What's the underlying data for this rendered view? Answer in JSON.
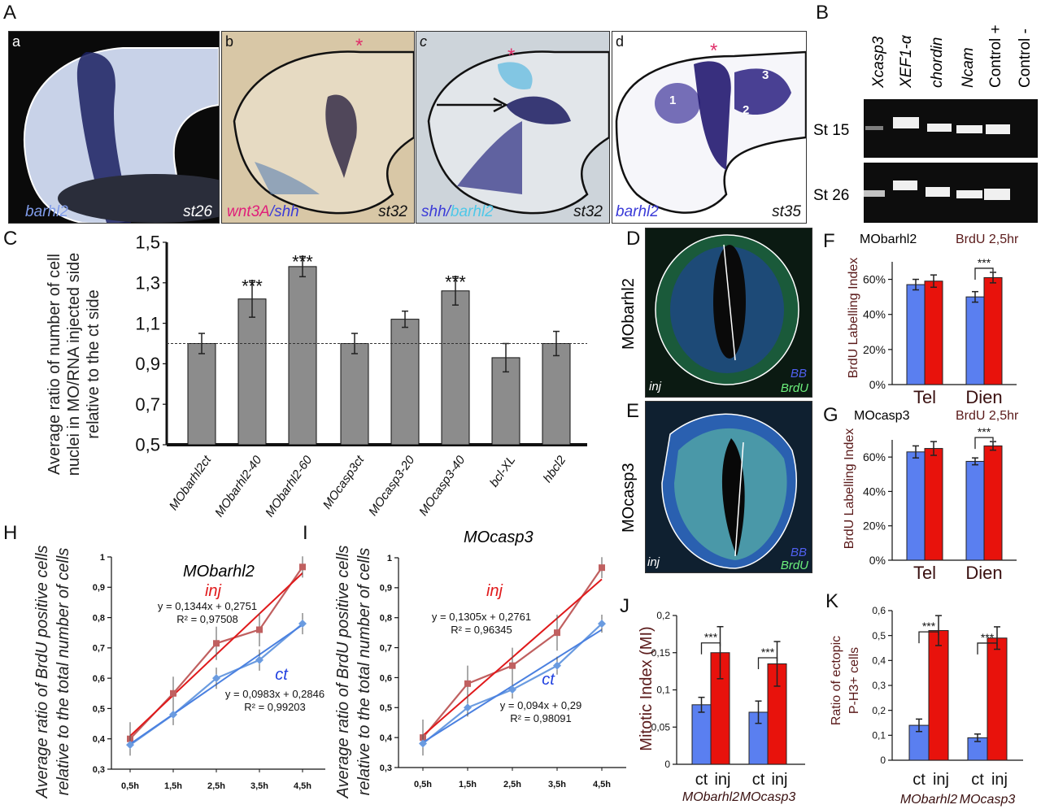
{
  "panel_letters": {
    "A": "A",
    "B": "B",
    "C": "C",
    "D": "D",
    "E": "E",
    "F": "F",
    "G": "G",
    "H": "H",
    "I": "I",
    "J": "J",
    "K": "K"
  },
  "panel_a": {
    "sub_letters": [
      "a",
      "b",
      "c",
      "d"
    ],
    "a": {
      "gene": "barhl2",
      "stage": "st26"
    },
    "b": {
      "gene1": "wnt3A",
      "sep": "/",
      "gene2": "shh",
      "stage": "st32",
      "marker": "*"
    },
    "c": {
      "gene1": "shh",
      "sep": "/",
      "gene2": "barhl2",
      "stage": "st32",
      "marker": "*",
      "arrow": "arrow-icon"
    },
    "d": {
      "gene": "barhl2",
      "stage": "st35",
      "marker": "*",
      "regions": [
        "1",
        "2",
        "3"
      ]
    },
    "colors": {
      "magenta": "#e0207a",
      "blue": "#3b3bd8",
      "cyan": "#4fc8e8",
      "star": "#e0306a"
    }
  },
  "panel_b": {
    "lanes": [
      "Xcasp3",
      "XEF1-α",
      "chordin",
      "Ncam",
      "Control +",
      "Control -"
    ],
    "rows": [
      "St 15",
      "St 26"
    ]
  },
  "panel_d": {
    "label": "MObarhl2",
    "inj": "inj",
    "bb": "BB",
    "brdu": "BrdU"
  },
  "panel_e": {
    "label": "MOcasp3",
    "inj": "inj",
    "bb": "BB",
    "brdu": "BrdU"
  },
  "colors": {
    "ct": "#5a7ff0",
    "inj": "#e8120c",
    "bar_grey": "#8c8c8c",
    "axis_label": "#5a1a1a"
  },
  "chart_data": [
    {
      "panel": "C",
      "type": "bar",
      "ylabel": "Average ratio of number of cell nuclei in MO/RNA injected side relative to the ct side",
      "categories": [
        "MObarhl2ct",
        "MObarhl2-40",
        "MObarhl2-60",
        "MOcasp3ct",
        "MOcasp3-20",
        "MOcasp3-40",
        "bcl-XL",
        "hbcl2"
      ],
      "values": [
        1.0,
        1.22,
        1.38,
        1.0,
        1.12,
        1.26,
        0.93,
        1.0
      ],
      "errors": [
        0.05,
        0.09,
        0.05,
        0.05,
        0.04,
        0.07,
        0.07,
        0.06
      ],
      "significance": [
        "",
        "***",
        "***",
        "",
        "",
        "***",
        "",
        ""
      ],
      "ylim": [
        0.5,
        1.5
      ],
      "yticks": [
        0.5,
        0.7,
        0.9,
        1.1,
        1.3,
        1.5
      ],
      "ytick_labels": [
        "0,5",
        "0,7",
        "0,9",
        "1,1",
        "1,3",
        "1,5"
      ],
      "reference_line": 1.0,
      "grid": false
    },
    {
      "panel": "F",
      "type": "bar",
      "title": "MObarhl2",
      "subtitle": "BrdU 2,5hr",
      "ylabel": "BrdU Labelling Index",
      "categories": [
        "Tel",
        "Dien"
      ],
      "series": [
        {
          "values": [
            57,
            50
          ],
          "errors": [
            3,
            3
          ],
          "color": "#5a7ff0"
        },
        {
          "values": [
            59,
            61
          ],
          "errors": [
            3.5,
            3
          ],
          "color": "#e8120c"
        }
      ],
      "significance": [
        "",
        "***"
      ],
      "ylim": [
        0,
        70
      ],
      "yticks": [
        0,
        20,
        40,
        60
      ],
      "ytick_labels": [
        "0%",
        "20%",
        "40%",
        "60%"
      ],
      "grid": false
    },
    {
      "panel": "G",
      "type": "bar",
      "title": "MOcasp3",
      "subtitle": "BrdU 2,5hr",
      "ylabel": "BrdU Labelling Index",
      "categories": [
        "Tel",
        "Dien"
      ],
      "series": [
        {
          "values": [
            63,
            57.5
          ],
          "errors": [
            3.5,
            2
          ],
          "color": "#5a7ff0"
        },
        {
          "values": [
            65,
            66.5
          ],
          "errors": [
            4,
            2.5
          ],
          "color": "#e8120c"
        }
      ],
      "significance": [
        "",
        "***"
      ],
      "ylim": [
        0,
        70
      ],
      "yticks": [
        0,
        20,
        40,
        60
      ],
      "ytick_labels": [
        "0%",
        "20%",
        "40%",
        "60%"
      ],
      "grid": false
    },
    {
      "panel": "H",
      "type": "line",
      "title": "MObarhl2",
      "ylabel": "Average ratio of BrdU positive cells relative to the total number of cells",
      "x": [
        "0,5h",
        "1,5h",
        "2,5h",
        "3,5h",
        "4,5h"
      ],
      "series": [
        {
          "name": "inj",
          "values": [
            0.4,
            0.55,
            0.715,
            0.76,
            0.967
          ],
          "errors": [
            0.055,
            0.055,
            0.055,
            0.055,
            0.035
          ],
          "color": "#c06060",
          "trend_color": "#e0191b",
          "equation": "y = 0,1344x + 0,2751",
          "r2": "R² = 0,97508",
          "slope": 0.1344,
          "intercept": 0.2751
        },
        {
          "name": "ct",
          "values": [
            0.38,
            0.48,
            0.6,
            0.66,
            0.78
          ],
          "errors": [
            0.035,
            0.035,
            0.035,
            0.035,
            0.035
          ],
          "color": "#6a9be0",
          "trend_color": "#4a80e0",
          "equation": "y = 0,0983x + 0,2846",
          "r2": "R² = 0,99203",
          "slope": 0.0983,
          "intercept": 0.2846
        }
      ],
      "ylim": [
        0.3,
        1.0
      ],
      "yticks": [
        0.3,
        0.4,
        0.5,
        0.6,
        0.7,
        0.8,
        0.9,
        1.0
      ],
      "ytick_labels": [
        "0,3",
        "0,4",
        "0,5",
        "0,6",
        "0,7",
        "0,8",
        "0,9",
        "1"
      ],
      "grid": false
    },
    {
      "panel": "I",
      "type": "line",
      "title": "MOcasp3",
      "ylabel": "Average ratio of BrdU positive cells relative to the total number of cells",
      "x": [
        "0,5h",
        "1,5h",
        "2,5h",
        "3,5h",
        "4,5h"
      ],
      "series": [
        {
          "name": "inj",
          "values": [
            0.4,
            0.58,
            0.64,
            0.75,
            0.967
          ],
          "errors": [
            0.06,
            0.06,
            0.06,
            0.06,
            0.035
          ],
          "color": "#c06060",
          "trend_color": "#e0191b",
          "equation": "y = 0,1305x + 0,2761",
          "r2": "R² = 0,96345",
          "slope": 0.1305,
          "intercept": 0.2761
        },
        {
          "name": "ct",
          "values": [
            0.38,
            0.5,
            0.56,
            0.64,
            0.78
          ],
          "errors": [
            0.035,
            0.03,
            0.03,
            0.03,
            0.03
          ],
          "color": "#6a9be0",
          "trend_color": "#4a80e0",
          "equation": "y = 0,094x + 0,29",
          "r2": "R² = 0,98091",
          "slope": 0.094,
          "intercept": 0.29
        }
      ],
      "ylim": [
        0.3,
        1.0
      ],
      "yticks": [
        0.3,
        0.4,
        0.5,
        0.6,
        0.7,
        0.8,
        0.9,
        1.0
      ],
      "ytick_labels": [
        "0,3",
        "0,4",
        "0,5",
        "0,6",
        "0,7",
        "0,8",
        "0,9",
        "1"
      ],
      "grid": false
    },
    {
      "panel": "J",
      "type": "bar",
      "ylabel": "Mitotic Index (MI)",
      "categories": [
        "MObarhl2",
        "MOcasp3"
      ],
      "bar_labels": [
        "ct",
        "inj"
      ],
      "series": [
        {
          "values": [
            0.08,
            0.07
          ],
          "errors": [
            0.01,
            0.015
          ],
          "color": "#5a7ff0"
        },
        {
          "values": [
            0.15,
            0.135
          ],
          "errors": [
            0.035,
            0.03
          ],
          "color": "#e8120c"
        }
      ],
      "significance": [
        "***",
        "***"
      ],
      "ylim": [
        0,
        0.2
      ],
      "yticks": [
        0,
        0.05,
        0.1,
        0.15,
        0.2
      ],
      "ytick_labels": [
        "0",
        "0,05",
        "0,1",
        "0,15",
        "0,2"
      ],
      "grid": false
    },
    {
      "panel": "K",
      "type": "bar",
      "ylabel": "Ratio of ectopic P-H3+ cells",
      "categories": [
        "MObarhl2",
        "MOcasp3"
      ],
      "bar_labels": [
        "ct",
        "inj"
      ],
      "series": [
        {
          "values": [
            0.14,
            0.09
          ],
          "errors": [
            0.025,
            0.015
          ],
          "color": "#5a7ff0"
        },
        {
          "values": [
            0.52,
            0.49
          ],
          "errors": [
            0.06,
            0.045
          ],
          "color": "#e8120c"
        }
      ],
      "significance": [
        "***",
        "***"
      ],
      "ylim": [
        0,
        0.6
      ],
      "yticks": [
        0,
        0.1,
        0.2,
        0.3,
        0.4,
        0.5,
        0.6
      ],
      "ytick_labels": [
        "0",
        "0,1",
        "0,2",
        "0,3",
        "0,4",
        "0,5",
        "0,6"
      ],
      "grid": false
    }
  ]
}
